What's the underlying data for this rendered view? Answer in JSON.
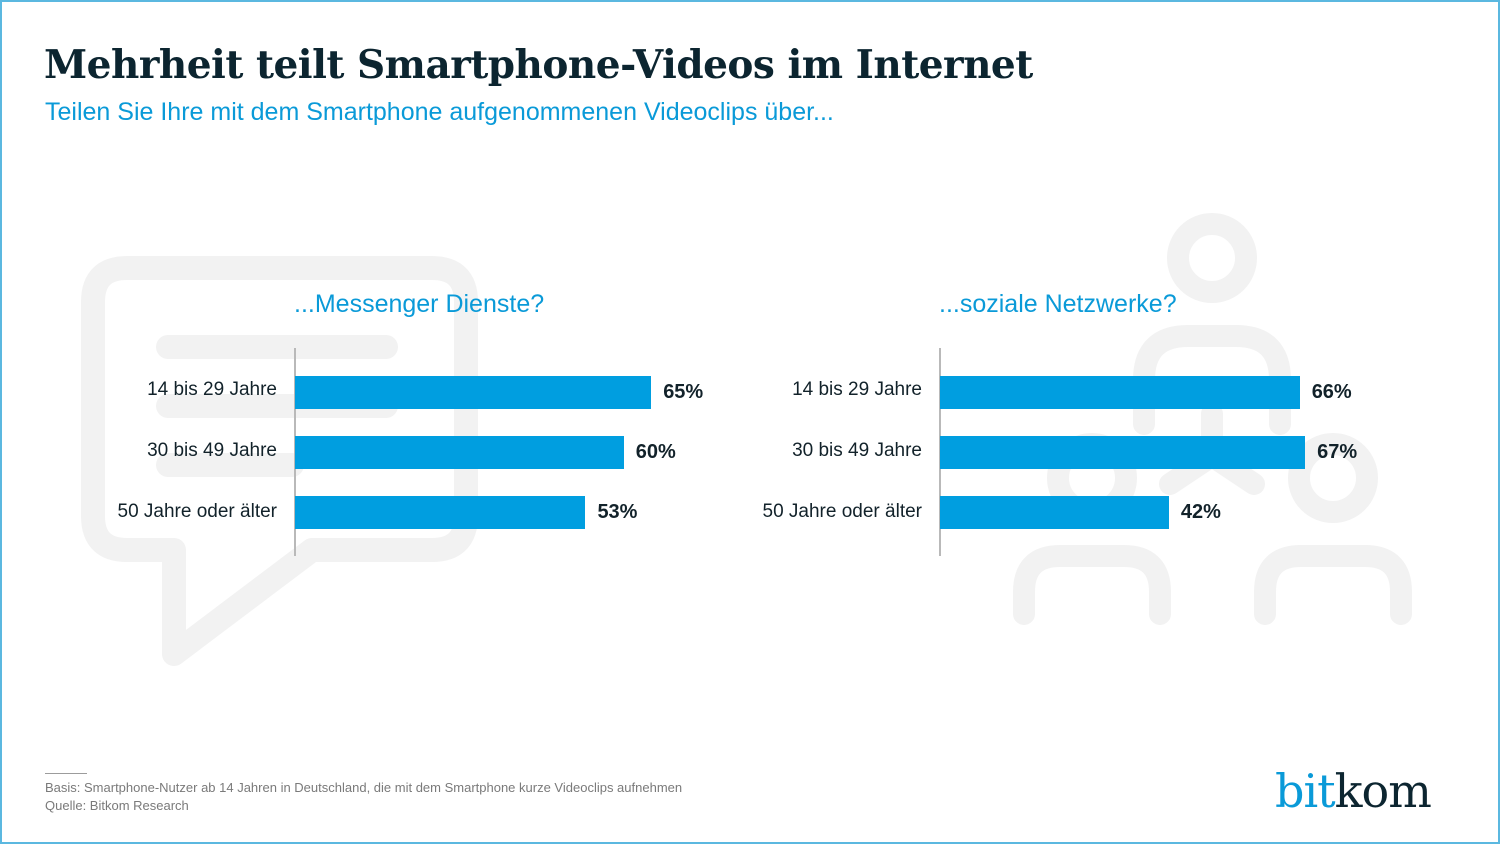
{
  "header": {
    "title": "Mehrheit teilt Smartphone-Videos im Internet",
    "subtitle": "Teilen Sie Ihre mit dem Smartphone aufgenommenen Videoclips über..."
  },
  "background_icons": [
    "speech-bubble-icon",
    "people-network-icon"
  ],
  "colors": {
    "bar": "#009ee0",
    "accent": "#0a9ad8",
    "title": "#0c2530",
    "frame": "#5bb8e0"
  },
  "chart_data": [
    {
      "type": "bar",
      "orientation": "horizontal",
      "title": "...Messenger Dienste?",
      "categories": [
        "14 bis 29 Jahre",
        "30 bis 49 Jahre",
        "50 Jahre oder älter"
      ],
      "values": [
        65,
        60,
        53
      ],
      "value_labels": [
        "65%",
        "60%",
        "53%"
      ],
      "unit": "%",
      "xlim": [
        0,
        100
      ],
      "grid": false,
      "legend": "none"
    },
    {
      "type": "bar",
      "orientation": "horizontal",
      "title": "...soziale Netzwerke?",
      "categories": [
        "14 bis 29 Jahre",
        "30 bis 49 Jahre",
        "50 Jahre oder älter"
      ],
      "values": [
        66,
        67,
        42
      ],
      "value_labels": [
        "66%",
        "67%",
        "42%"
      ],
      "unit": "%",
      "xlim": [
        0,
        100
      ],
      "grid": false,
      "legend": "none"
    }
  ],
  "footer": {
    "basis": "Basis: Smartphone-Nutzer ab 14 Jahren in Deutschland, die mit dem Smartphone kurze Videoclips aufnehmen",
    "source": "Quelle: Bitkom Research"
  },
  "logo": {
    "part1": "bit",
    "part2": "kom"
  }
}
